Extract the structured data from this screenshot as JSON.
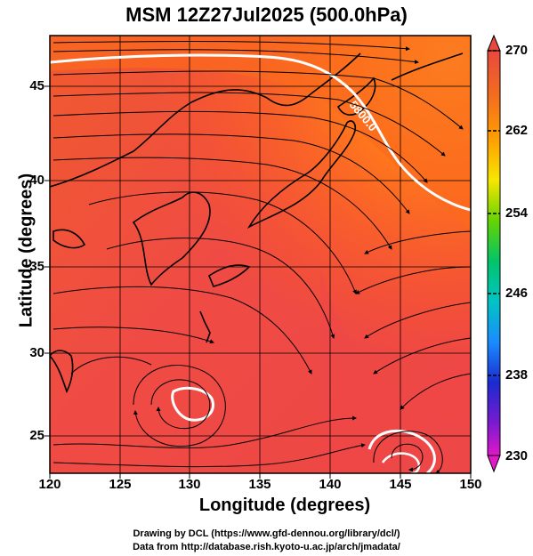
{
  "title": "MSM 12Z27Jul2025 (500.0hPa)",
  "xlabel": "Longitude (degrees)",
  "ylabel": "Latitude  (degrees)",
  "x_ticks": [
    "120",
    "125",
    "130",
    "135",
    "140",
    "145",
    "150"
  ],
  "y_ticks": [
    "45",
    "40",
    "35",
    "30",
    "25"
  ],
  "colorbar_ticks": [
    "270",
    "262",
    "254",
    "246",
    "238",
    "230"
  ],
  "contour_label": "5800.0",
  "footer_line1": "Drawing by DCL (https://www.gfd-dennou.org/library/dcl/)",
  "footer_line2": "Data from http://database.rish.kyoto-u.ac.jp/arch/jmadata/"
}
